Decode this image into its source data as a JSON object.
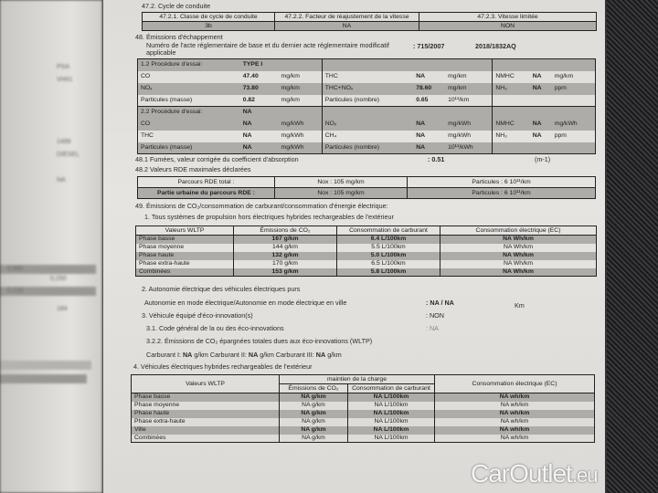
{
  "left_page": {
    "items": [
      "PSA",
      "VH01",
      "1499",
      "DIESEL",
      "NA",
      "0,680",
      "0,250",
      "0,210",
      "184"
    ]
  },
  "s472": {
    "title": "47.2. Cycle de conduite",
    "headers": [
      "47.2.1. Classe de cycle de conduite",
      "47.2.2. Facteur de réajustement de la vitesse",
      "47.2.3. Vitesse limitée"
    ],
    "values": [
      "3b",
      "NA",
      "NON"
    ]
  },
  "s48": {
    "title": "48. Émissions d'échappement",
    "act_label": "Numéro de l'acte réglementaire de base et du dernier acte réglementaire modificatif",
    "act_label2": "applicable",
    "act_base": ": 715/2007",
    "act_mod": "2018/1832AQ",
    "rows": [
      [
        "1.2 Procédure d'essai:",
        "TYPE I",
        "",
        "",
        "",
        "",
        "",
        "",
        ""
      ],
      [
        "CO",
        "47.40",
        "mg/km",
        "THC",
        "NA",
        "mg/km",
        "NMHC",
        "NA",
        "mg/km"
      ],
      [
        "NOₓ",
        "73.80",
        "mg/km",
        "THC+NOₓ",
        "78.60",
        "mg/km",
        "NH₃",
        "NA",
        "ppm"
      ],
      [
        "Particules (masse)",
        "0.82",
        "mg/km",
        "Particules (nombre)",
        "0.65",
        "10¹¹/km",
        "",
        "",
        ""
      ],
      [
        "2.2 Procédure d'essai:",
        "NA",
        "",
        "",
        "",
        "",
        "",
        "",
        ""
      ],
      [
        "CO",
        "NA",
        "mg/kWh",
        "NOₓ",
        "NA",
        "mg/kWh",
        "NMHC",
        "NA",
        "mg/kWh"
      ],
      [
        "THC",
        "NA",
        "mg/kWh",
        "CH₄",
        "NA",
        "mg/kWh",
        "NH₃",
        "NA",
        "ppm"
      ],
      [
        "Particules (masse)",
        "NA",
        "mg/kWh",
        "Particules (nombre)",
        "NA",
        "10¹¹/kWh",
        "",
        "",
        ""
      ]
    ]
  },
  "s481": {
    "label": "48.1 Fumées, valeur corrigée du coefficient d'absorption",
    "value": ": 0.51",
    "unit": "(m-1)"
  },
  "s482": {
    "title": "48.2 Valeurs RDE maximales déclarées",
    "rows": [
      [
        "Parcours RDE total :",
        "Nox : 105  mg/km",
        "Particules : 6  10¹¹/km"
      ],
      [
        "Partie urbaine du parcours RDE :",
        "Nox : 105  mg/km",
        "Particules : 6  10¹¹/km"
      ]
    ]
  },
  "s49": {
    "title": "49. Émissions de CO₂/consommation de carburant/consommation d'énergie électrique:",
    "sub1": "1. Tous systèmes de propulsion hors électriques hybrides rechargeables de l'extérieur",
    "headers": [
      "Valeurs WLTP",
      "Émissions de CO₂",
      "Consommation de carburant",
      "Consommation électrique (EC)"
    ],
    "rows": [
      [
        "Phase basse",
        "167 g/km",
        "6.4 L/100km",
        "NA Wh/km"
      ],
      [
        "Phase moyenne",
        "144 g/km",
        "5.5 L/100km",
        "NA Wh/km"
      ],
      [
        "Phase haute",
        "132 g/km",
        "5.0 L/100km",
        "NA Wh/km"
      ],
      [
        "Phase extra-haute",
        "170 g/km",
        "6.5 L/100km",
        "NA Wh/km"
      ],
      [
        "Combinées",
        "153 g/km",
        "5.8 L/100km",
        "NA Wh/km"
      ]
    ],
    "sub2": "2. Autonomie électrique des véhicules électriques purs",
    "autonomie_label": "Autonomie en mode électrique/Autonomie en mode électrique en ville",
    "autonomie_value": ": NA / NA",
    "autonomie_unit": "Km",
    "sub3": "3. Véhicule équipé d'éco-innovation(s)",
    "sub3_value": ": NON",
    "sub31": "3.1. Code général de la ou des éco-innovations",
    "sub31_value": ": NA",
    "sub322": "3.2.2. Émissions de CO₂ épargnées totales dues aux éco-innovations (WLTP)",
    "carburant": [
      "Carburant I:",
      "NA",
      "g/km",
      "Carburant II:",
      "NA",
      "g/km",
      "Carburant III:",
      "NA",
      "g/km"
    ],
    "sub4": "4. Véhicules électriques hybrides rechargeables de l'extérieur",
    "phev_headers": {
      "wltp": "Valeurs WLTP",
      "group": "maintien de la charge",
      "co2": "Émissions de CO₂",
      "fuel": "Consommation de carburant",
      "ec": "Consommation électrique (EC)"
    },
    "phev_rows": [
      [
        "Phase basse",
        "NA g/km",
        "NA L/100km",
        "NA wh/km"
      ],
      [
        "Phase moyenne",
        "NA g/km",
        "NA L/100km",
        "NA wh/km"
      ],
      [
        "Phase haute",
        "NA g/km",
        "NA L/100km",
        "NA wh/km"
      ],
      [
        "Phase extra-haute",
        "NA g/km",
        "NA L/100km",
        "NA wh/km"
      ],
      [
        "Ville",
        "NA g/km",
        "NA L/100km",
        "NA wh/km"
      ],
      [
        "Combinées",
        "NA g/km",
        "NA L/100km",
        "NA wh/km"
      ]
    ]
  },
  "watermark": {
    "brand": "CarOutlet",
    ".eu": ".eu",
    "tld": ".eu"
  }
}
